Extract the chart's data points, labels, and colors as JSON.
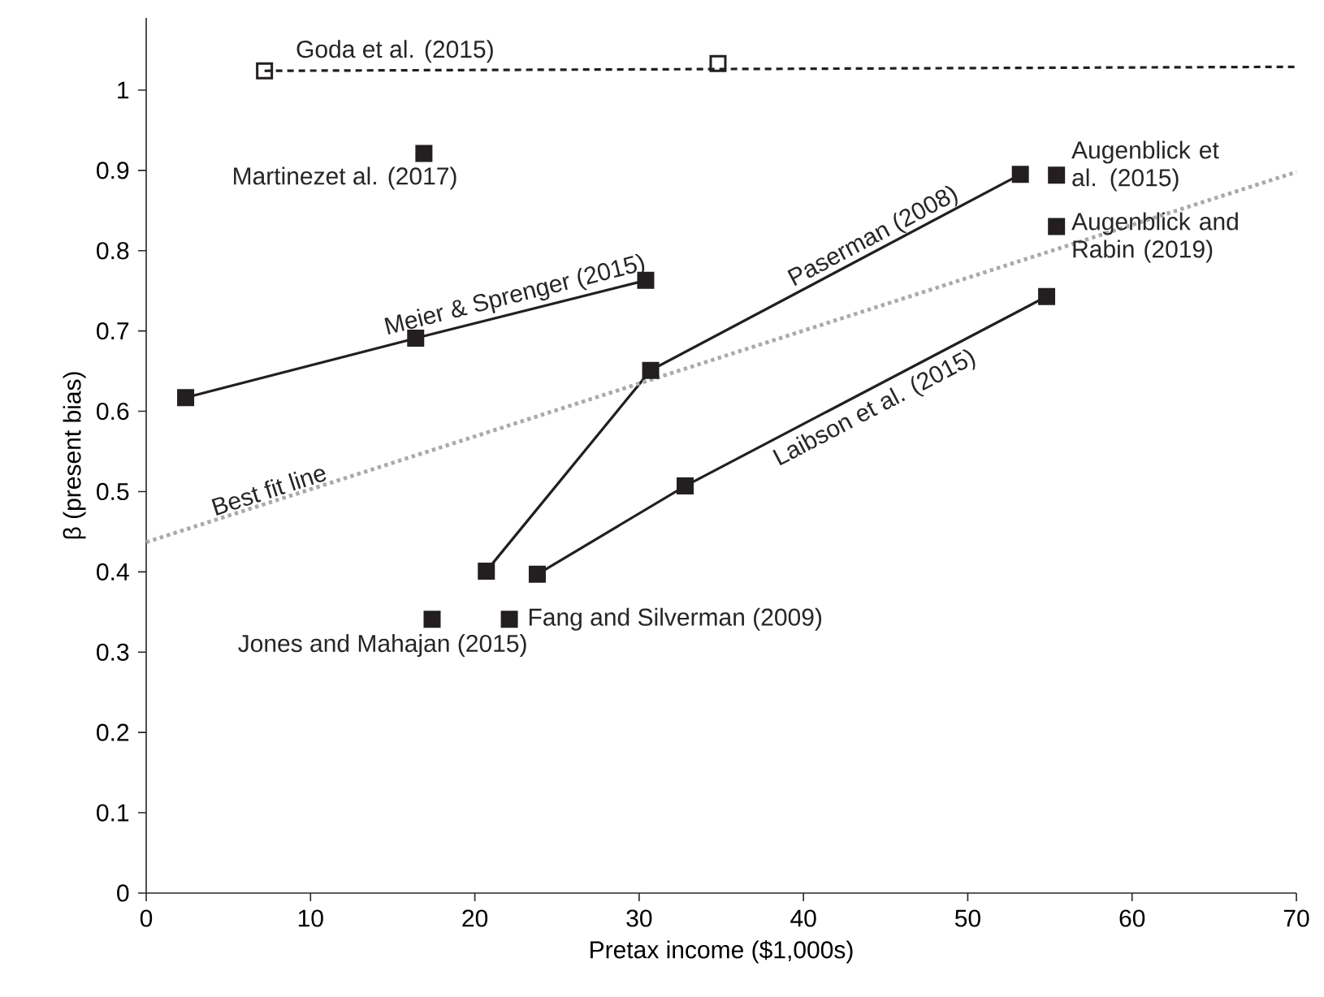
{
  "chart_data": {
    "type": "scatter",
    "xlabel": "Pretax income ($1,000s)",
    "ylabel": "β (present bias)",
    "xlim": [
      0,
      70
    ],
    "ylim": [
      0,
      1.09
    ],
    "xticks": [
      0,
      10,
      20,
      30,
      40,
      50,
      60,
      70
    ],
    "yticks": [
      0,
      0.1,
      0.2,
      0.3,
      0.4,
      0.5,
      0.6,
      0.7,
      0.8,
      0.9,
      1
    ],
    "marker": "square",
    "series": [
      {
        "name": "Goda et al. (2015)",
        "color": "#231f20",
        "x": [
          7.2,
          34.8
        ],
        "values": [
          1.024,
          1.033
        ]
      },
      {
        "name": "Martinezet al. (2017)",
        "color": "#231f20",
        "x": [
          16.9
        ],
        "values": [
          0.921
        ]
      },
      {
        "name": "Meier & Sprenger (2015)",
        "type": "line",
        "color": "#231f20",
        "x": [
          2.4,
          16.4,
          30.4
        ],
        "values": [
          0.617,
          0.691,
          0.763
        ]
      },
      {
        "name": "Paserman (2008)",
        "type": "line",
        "color": "#231f20",
        "x": [
          20.7,
          30.7,
          53.2
        ],
        "values": [
          0.401,
          0.651,
          0.895
        ]
      },
      {
        "name": "Laibson et al. (2015)",
        "type": "line",
        "color": "#231f20",
        "x": [
          23.8,
          32.8,
          54.8
        ],
        "values": [
          0.397,
          0.507,
          0.743
        ]
      },
      {
        "name": "Jones and Mahajan (2015)",
        "color": "#231f20",
        "x": [
          17.4
        ],
        "values": [
          0.341
        ]
      },
      {
        "name": "Fang and Silverman (2009)",
        "color": "#231f20",
        "x": [
          22.1
        ],
        "values": [
          0.341
        ]
      },
      {
        "name": "Augenblick et al. (2015)",
        "color": "#231f20",
        "x": [
          55.4
        ],
        "values": [
          0.894
        ]
      },
      {
        "name": "Augenblick and Rabin (2019)",
        "color": "#231f20",
        "x": [
          55.4
        ],
        "values": [
          0.83
        ]
      },
      {
        "name": "Best fit line",
        "type": "line",
        "color": "#aaaaaa",
        "line_style": "dotted",
        "marker": "none",
        "x": [
          0,
          70
        ],
        "values": [
          0.437,
          0.898
        ]
      },
      {
        "type": "line",
        "color": "#231f20",
        "line_style": "dashed",
        "marker": "none",
        "x": [
          7.2,
          70
        ],
        "values": [
          1.024,
          1.029
        ]
      }
    ]
  }
}
